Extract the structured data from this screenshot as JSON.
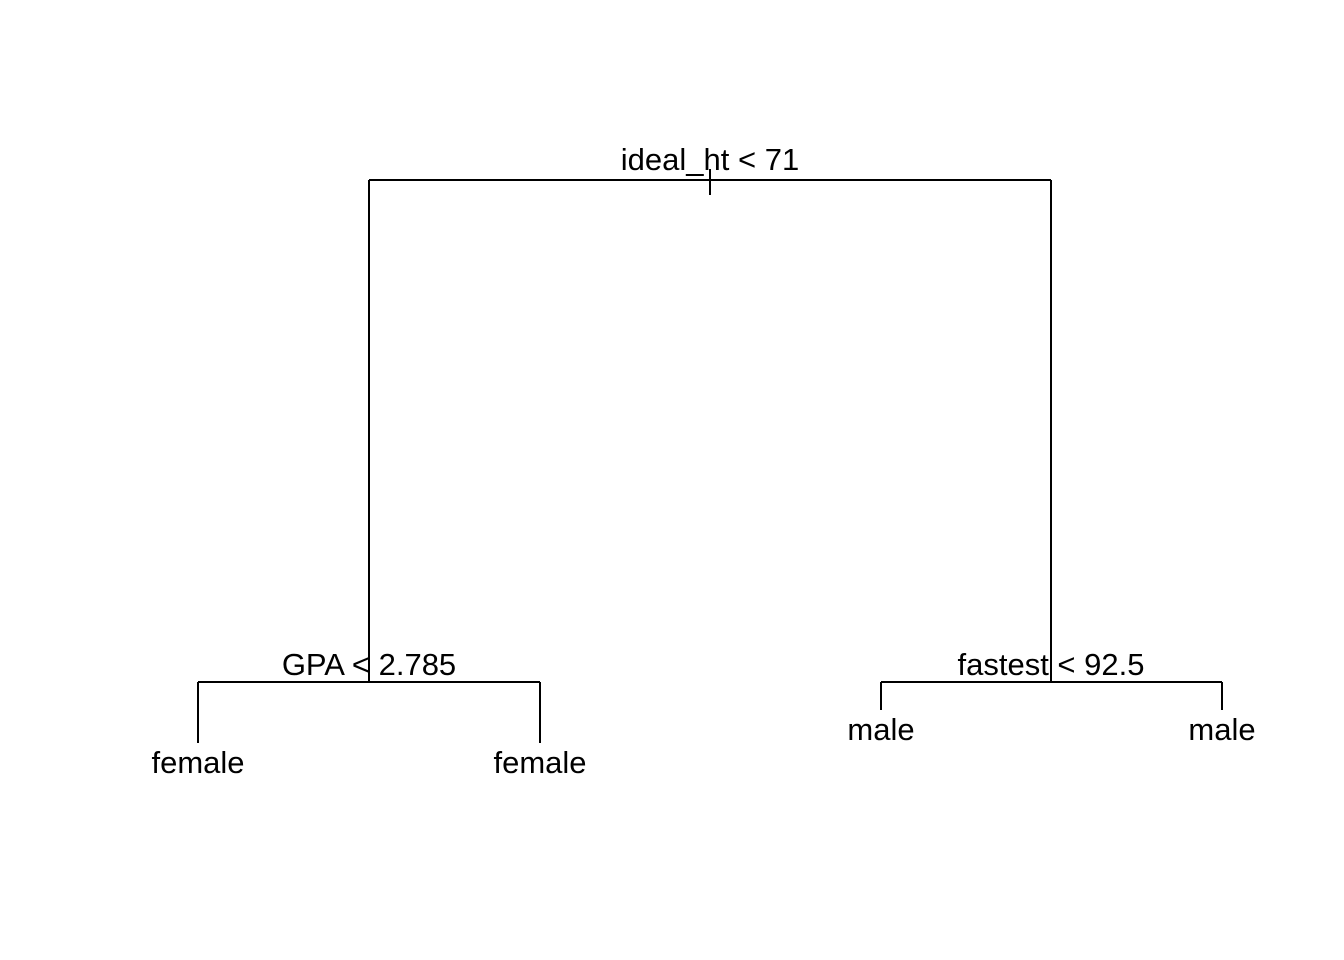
{
  "tree": {
    "root": {
      "split": "ideal_ht < 71",
      "left": {
        "split": "GPA < 2.785",
        "left_leaf": "female",
        "right_leaf": "female"
      },
      "right": {
        "split": "fastest < 92.5",
        "left_leaf": "male",
        "right_leaf": "male"
      }
    }
  },
  "colors": {
    "line": "#000000",
    "text": "#000000",
    "background": "#ffffff"
  }
}
